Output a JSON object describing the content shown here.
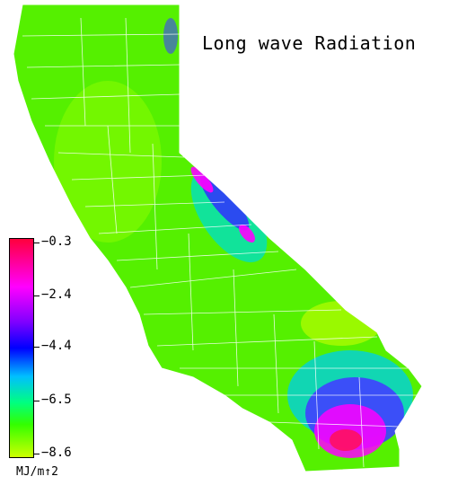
{
  "title": "Long wave Radiation",
  "legend": {
    "units": "MJ/m↑2",
    "ticks": [
      {
        "value": -0.3,
        "label": "−0.3"
      },
      {
        "value": -2.4,
        "label": "−2.4"
      },
      {
        "value": -4.4,
        "label": "−4.4"
      },
      {
        "value": -6.5,
        "label": "−6.5"
      },
      {
        "value": -8.6,
        "label": "−8.6"
      }
    ],
    "range": [
      -8.6,
      -0.3
    ]
  },
  "colors": {
    "high": "#ff003c",
    "magenta": "#ff00ff",
    "violet": "#8000ff",
    "blue": "#0000ff",
    "cyan": "#00bfff",
    "green": "#33ff00",
    "low": "#ccff00",
    "county_lines": "#ffffff"
  }
}
